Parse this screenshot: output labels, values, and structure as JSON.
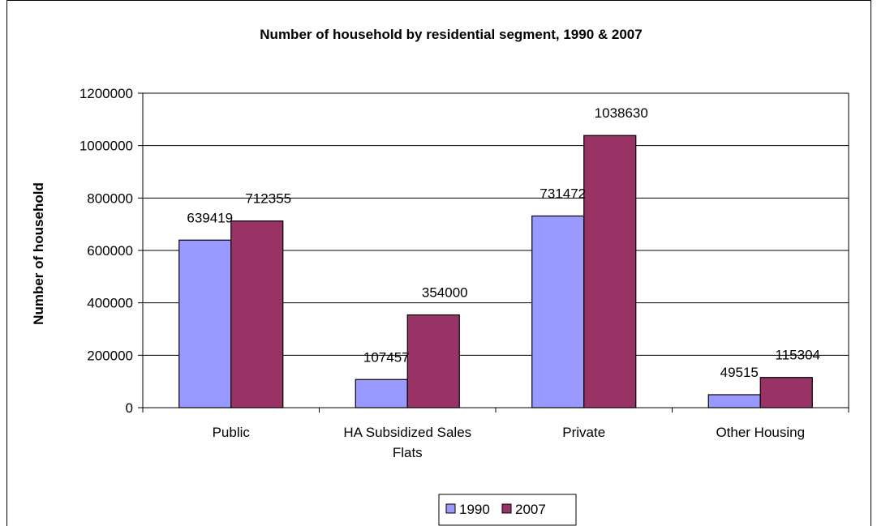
{
  "chart_data": {
    "type": "bar",
    "title": "Number of household by residential segment, 1990 & 2007",
    "xlabel": "",
    "ylabel": "Number of household",
    "categories": [
      [
        "Public"
      ],
      [
        "HA Subsidized Sales",
        "Flats"
      ],
      [
        "Private"
      ],
      [
        "Other Housing"
      ]
    ],
    "series": [
      {
        "name": "1990",
        "values": [
          639419,
          107457,
          731472,
          49515
        ],
        "color": "#9999ff"
      },
      {
        "name": "2007",
        "values": [
          712355,
          354000,
          1038630,
          115304
        ],
        "color": "#993366"
      }
    ],
    "ylim": [
      0,
      1200000
    ],
    "yticks": [
      0,
      200000,
      400000,
      600000,
      800000,
      1000000,
      1200000
    ],
    "grid": true,
    "legend": "bottom"
  }
}
